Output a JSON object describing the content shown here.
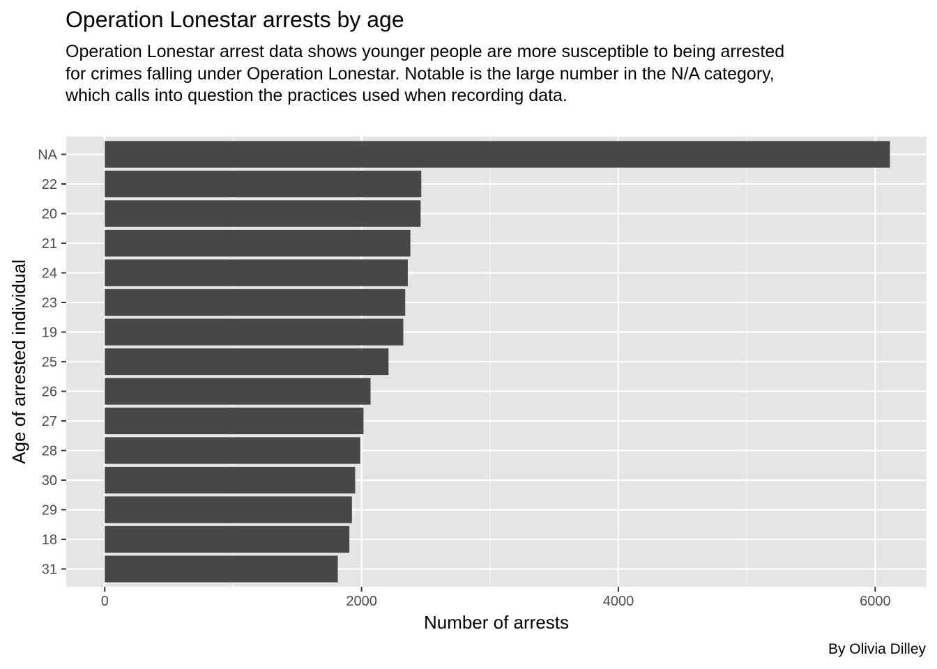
{
  "chart_data": {
    "type": "bar",
    "orientation": "horizontal",
    "title": "Operation Lonestar arrests by age",
    "subtitle": "Operation Lonestar arrest data shows younger people are more susceptible to being arrested for crimes falling under Operation Lonestar. Notable is the large number in the N/A category, which calls into question the practices used when recording data.",
    "xlabel": "Number of arrests",
    "ylabel": "Age of arrested individual",
    "caption": "By Olivia Dilley",
    "categories": [
      "NA",
      "22",
      "20",
      "21",
      "24",
      "23",
      "19",
      "25",
      "26",
      "27",
      "28",
      "30",
      "29",
      "18",
      "31"
    ],
    "values": [
      6115,
      2465,
      2460,
      2380,
      2360,
      2340,
      2325,
      2210,
      2070,
      2015,
      1990,
      1950,
      1925,
      1905,
      1815
    ],
    "xlim": [
      -300,
      6400
    ],
    "xticks": [
      0,
      2000,
      4000,
      6000
    ],
    "xtick_labels": [
      "0",
      "2000",
      "4000",
      "6000"
    ],
    "grid": true,
    "colors": {
      "bar": "#474747",
      "panel_background": "#e5e5e5",
      "grid_major": "#ffffff",
      "grid_minor": "#f2f2f2"
    }
  }
}
